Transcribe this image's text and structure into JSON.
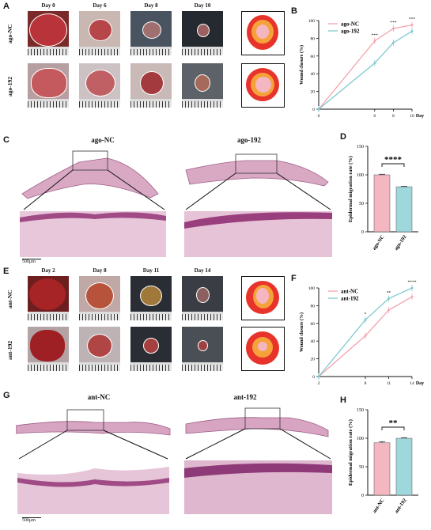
{
  "panels": {
    "A": "A",
    "B": "B",
    "C": "C",
    "D": "D",
    "E": "E",
    "F": "F",
    "G": "G",
    "H": "H"
  },
  "panel_a": {
    "days": [
      "Day 0",
      "Day 6",
      "Day 8",
      "Day 10"
    ],
    "rows": [
      "ago-NC",
      "ago-192"
    ]
  },
  "panel_e": {
    "days": [
      "Day 2",
      "Day 8",
      "Day 11",
      "Day 14"
    ],
    "rows": [
      "ant-NC",
      "ant-192"
    ]
  },
  "panel_c": {
    "left_title": "ago-NC",
    "right_title": "ago-192",
    "scale": "500μm"
  },
  "panel_g": {
    "left_title": "ant-NC",
    "right_title": "ant-192",
    "scale": "500μm"
  },
  "colors": {
    "nc_line": "#f4a3ad",
    "treat_line": "#7fc9cf",
    "nc_bar": "#f4b6c0",
    "treat_bar": "#9fd8dc",
    "wound_red": "#e8332a",
    "wound_orange": "#f5a23a",
    "wound_pink": "#f4b6c0"
  },
  "chart_data": [
    {
      "id": "B",
      "type": "line",
      "ylabel": "Wound closure (%)",
      "xlabel": "Day",
      "x": [
        0,
        6,
        8,
        10
      ],
      "xticks": [
        "0",
        "6",
        "8",
        "10"
      ],
      "ylim": [
        0,
        100
      ],
      "yticks": [
        "0",
        "20",
        "40",
        "60",
        "80",
        "100"
      ],
      "series": [
        {
          "name": "ago-NC",
          "values": [
            0,
            77,
            91,
            95
          ]
        },
        {
          "name": "ago-192",
          "values": [
            0,
            52,
            75,
            88
          ]
        }
      ],
      "annotations": [
        "***",
        "***",
        "***"
      ]
    },
    {
      "id": "D",
      "type": "bar",
      "ylabel": "Epidermal migration rate (%)",
      "categories": [
        "ago-NC",
        "ago-192"
      ],
      "values": [
        100,
        79
      ],
      "errors": [
        1,
        1
      ],
      "ylim": [
        0,
        150
      ],
      "yticks": [
        "0",
        "50",
        "100",
        "150"
      ],
      "significance": "****"
    },
    {
      "id": "F",
      "type": "line",
      "ylabel": "Wound closure (%)",
      "xlabel": "Day",
      "x": [
        2,
        8,
        11,
        14
      ],
      "xticks": [
        "2",
        "8",
        "11",
        "14"
      ],
      "ylim": [
        0,
        100
      ],
      "yticks": [
        "0",
        "20",
        "40",
        "60",
        "80",
        "100"
      ],
      "series": [
        {
          "name": "ant-NC",
          "values": [
            0,
            46,
            75,
            90
          ]
        },
        {
          "name": "ant-192",
          "values": [
            0,
            64,
            88,
            100
          ]
        }
      ],
      "annotations": [
        "*",
        "**",
        "****"
      ]
    },
    {
      "id": "H",
      "type": "bar",
      "ylabel": "Epidermal migration rate (%)",
      "categories": [
        "ant-NC",
        "ant-192"
      ],
      "values": [
        92,
        100
      ],
      "errors": [
        2,
        1
      ],
      "ylim": [
        0,
        150
      ],
      "yticks": [
        "0",
        "50",
        "100",
        "150"
      ],
      "significance": "**"
    }
  ]
}
